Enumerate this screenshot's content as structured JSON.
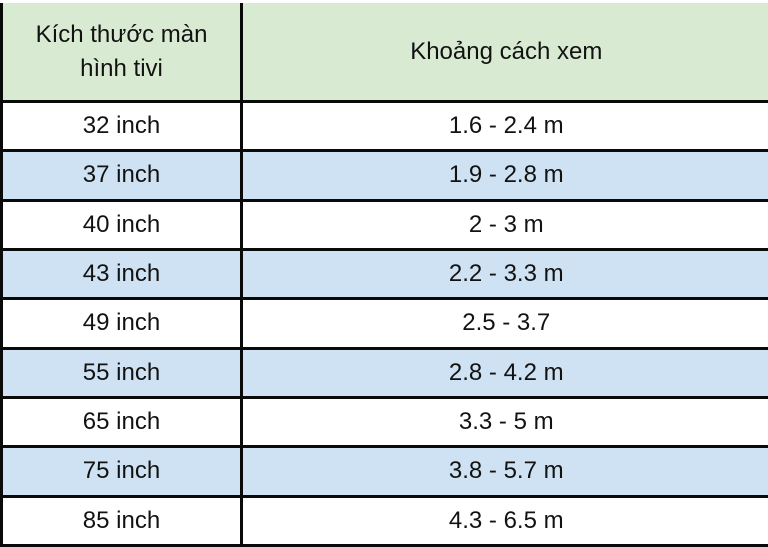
{
  "table": {
    "columns": [
      {
        "label": "Kích thước màn hình tivi"
      },
      {
        "label": "Khoảng cách xem"
      }
    ],
    "rows": [
      {
        "size": "32 inch",
        "distance": "1.6 - 2.4 m"
      },
      {
        "size": "37 inch",
        "distance": "1.9 - 2.8 m"
      },
      {
        "size": "40 inch",
        "distance": "2 - 3 m"
      },
      {
        "size": "43 inch",
        "distance": "2.2 - 3.3 m"
      },
      {
        "size": "49 inch",
        "distance": "2.5 - 3.7"
      },
      {
        "size": "55 inch",
        "distance": "2.8 - 4.2 m"
      },
      {
        "size": "65 inch",
        "distance": "3.3 - 5 m"
      },
      {
        "size": "75 inch",
        "distance": "3.8 - 5.7 m"
      },
      {
        "size": "85 inch",
        "distance": "4.3 - 6.5 m"
      }
    ]
  },
  "colors": {
    "header_bg": "#d9ead3",
    "stripe_bg": "#cfe2f3",
    "row_bg": "#ffffff",
    "border": "#0a0a0a",
    "text": "#121212"
  },
  "chart_data": {
    "type": "table",
    "title": "",
    "columns": [
      "Kích thước màn hình tivi",
      "Khoảng cách xem"
    ],
    "rows": [
      [
        "32 inch",
        "1.6 - 2.4 m"
      ],
      [
        "37 inch",
        "1.9 - 2.8 m"
      ],
      [
        "40 inch",
        "2 - 3 m"
      ],
      [
        "43 inch",
        "2.2 - 3.3 m"
      ],
      [
        "49 inch",
        "2.5 - 3.7"
      ],
      [
        "55 inch",
        "2.8 - 4.2 m"
      ],
      [
        "65 inch",
        "3.3 - 5 m"
      ],
      [
        "75 inch",
        "3.8 - 5.7 m"
      ],
      [
        "85 inch",
        "4.3 - 6.5 m"
      ]
    ],
    "layout_hints": {
      "header_fill": "#d9ead3",
      "zebra_fill": "#cfe2f3",
      "zebra_rows": [
        2,
        4,
        6,
        8
      ],
      "grid": "on",
      "outer_borders_visible": [
        "left",
        "bottom"
      ]
    }
  }
}
